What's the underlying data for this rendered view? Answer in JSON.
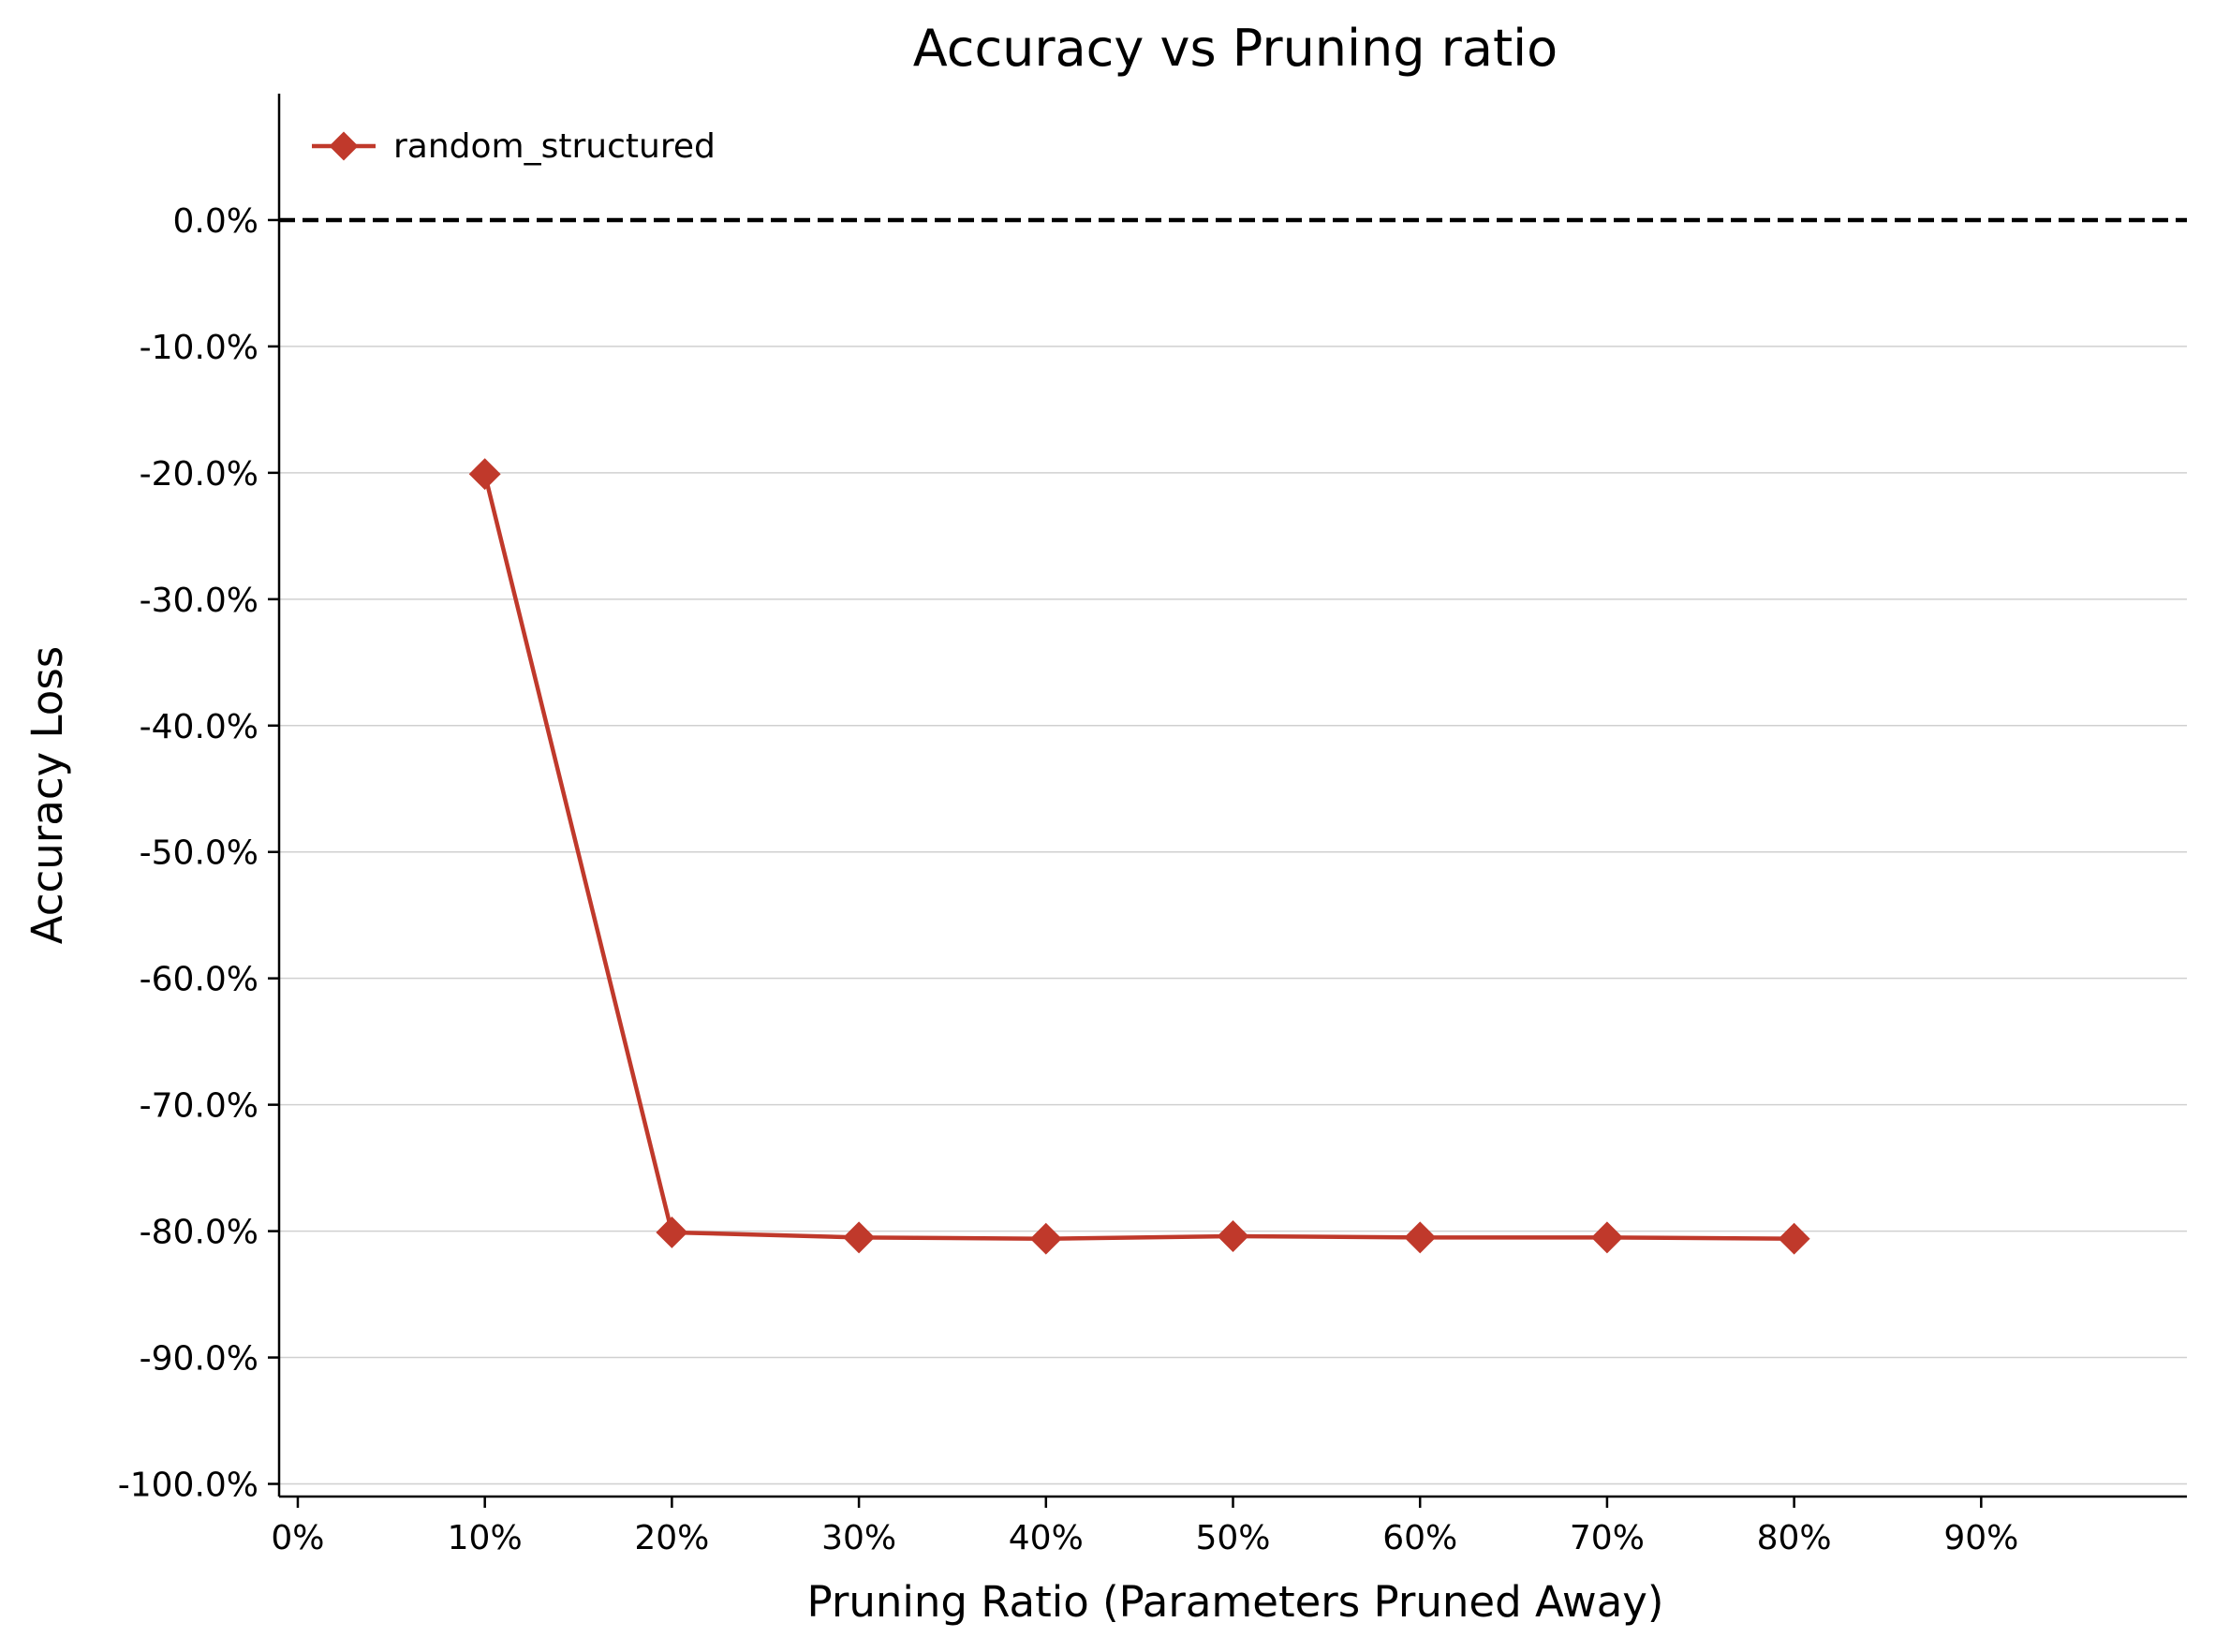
{
  "chart_data": {
    "type": "line",
    "title": "Accuracy vs Pruning ratio",
    "xlabel": "Pruning Ratio (Parameters Pruned Away)",
    "ylabel": "Accuracy Loss",
    "x": [
      0.1,
      0.2,
      0.3,
      0.4,
      0.5,
      0.6,
      0.7,
      0.8
    ],
    "series": [
      {
        "name": "random_structured",
        "values": [
          -20.1,
          -80.1,
          -80.5,
          -80.6,
          -80.4,
          -80.5,
          -80.5,
          -80.6
        ],
        "color": "#c0392b",
        "marker": "diamond"
      }
    ],
    "xlim": [
      -0.01,
      1.01
    ],
    "ylim": [
      -101,
      10
    ],
    "xticks": [
      0,
      0.1,
      0.2,
      0.3,
      0.4,
      0.5,
      0.6,
      0.7,
      0.8,
      0.9
    ],
    "xtick_labels": [
      "0%",
      "10%",
      "20%",
      "30%",
      "40%",
      "50%",
      "60%",
      "70%",
      "80%",
      "90%"
    ],
    "yticks": [
      0,
      -10,
      -20,
      -30,
      -40,
      -50,
      -60,
      -70,
      -80,
      -90,
      -100
    ],
    "ytick_labels": [
      "0.0%",
      "-10.0%",
      "-20.0%",
      "-30.0%",
      "-40.0%",
      "-50.0%",
      "-60.0%",
      "-70.0%",
      "-80.0%",
      "-90.0%",
      "-100.0%"
    ],
    "reference_line": {
      "y": 0,
      "style": "dashed",
      "color": "#000000"
    },
    "grid": "horizontal",
    "legend_position": "top-left"
  }
}
